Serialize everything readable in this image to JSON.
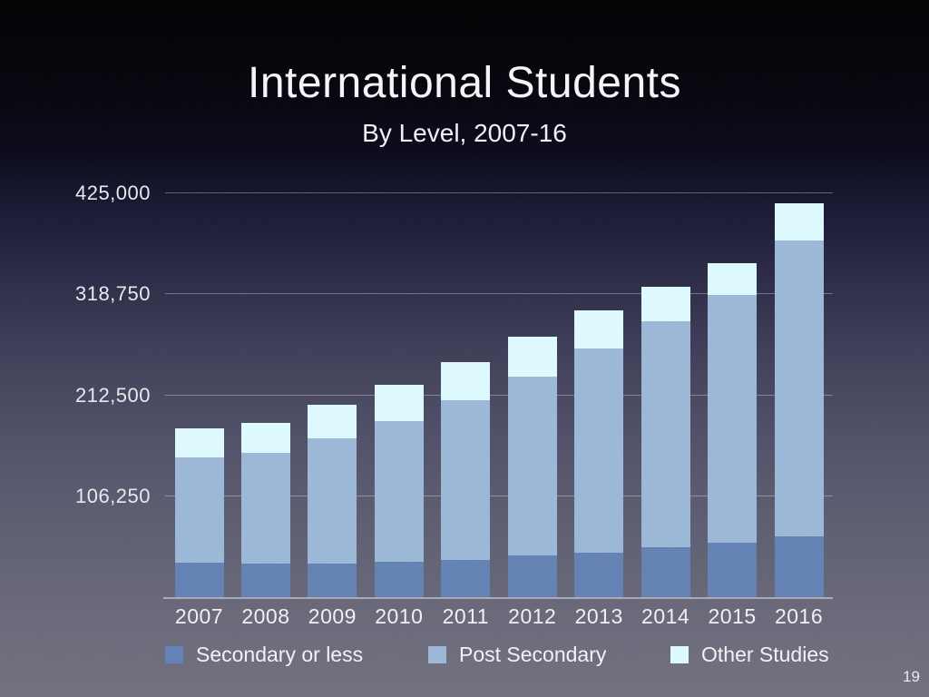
{
  "slide": {
    "title": "International Students",
    "subtitle": "By Level, 2007-16",
    "page_number": "19"
  },
  "chart_data": {
    "type": "bar",
    "stacked": true,
    "title": "International Students",
    "subtitle": "By Level, 2007-16",
    "categories": [
      "2007",
      "2008",
      "2009",
      "2010",
      "2011",
      "2012",
      "2013",
      "2014",
      "2015",
      "2016"
    ],
    "series": [
      {
        "name": "Secondary or less",
        "color": "#6282b4",
        "values": [
          36000,
          35500,
          35500,
          37000,
          39500,
          43500,
          47000,
          52500,
          57000,
          64000
        ]
      },
      {
        "name": "Post Secondary",
        "color": "#9cb8d8",
        "values": [
          111000,
          116000,
          132000,
          148500,
          168000,
          189000,
          215000,
          238000,
          261000,
          311000
        ]
      },
      {
        "name": "Other Studies",
        "color": "#defbff",
        "values": [
          31000,
          32000,
          35000,
          38000,
          40000,
          41500,
          39500,
          36000,
          33500,
          39500
        ]
      }
    ],
    "totals": [
      178000,
      183500,
      202500,
      223500,
      247500,
      274000,
      301500,
      326500,
      351500,
      414500
    ],
    "y_axis": {
      "max": 425000,
      "tick_values": [
        106250,
        212500,
        318750,
        425000
      ],
      "ticks": [
        "106,250",
        "212,500",
        "318,750",
        "425,000"
      ]
    },
    "xlabel": "",
    "ylabel": "",
    "grid": true,
    "legend_position": "bottom"
  }
}
